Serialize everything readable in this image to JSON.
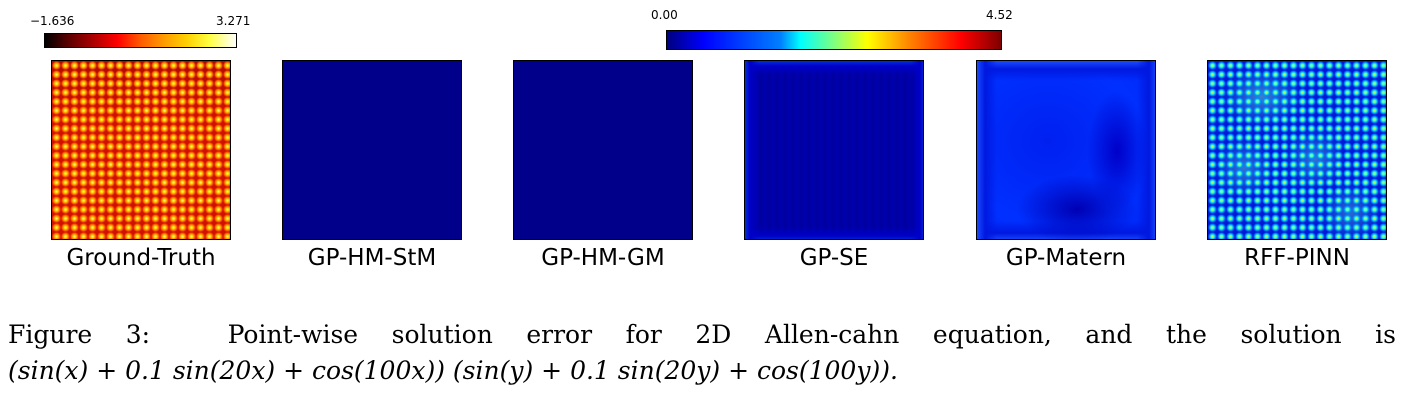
{
  "colorbars": {
    "ground_truth": {
      "min_label": "−1.636",
      "max_label": "3.271",
      "colormap": "hot"
    },
    "error": {
      "min_label": "0.00",
      "max_label": "4.52",
      "colormap": "jet"
    }
  },
  "panels": [
    {
      "label": "Ground-Truth",
      "dominant_color": "#d01000"
    },
    {
      "label": "GP-HM-StM",
      "dominant_color": "#00008a"
    },
    {
      "label": "GP-HM-GM",
      "dominant_color": "#00008a"
    },
    {
      "label": "GP-SE",
      "dominant_color": "#0000a0"
    },
    {
      "label": "GP-Matern",
      "dominant_color": "#0028f8"
    },
    {
      "label": "RFF-PINN",
      "dominant_color": "#0018d8"
    }
  ],
  "caption": {
    "figure_label": "Figure 3:",
    "text_line1": "Point-wise solution error for 2D Allen-cahn equation, and the solution is",
    "text_line2": "(sin(x) + 0.1 sin(20x) + cos(100x)) (sin(y) + 0.1 sin(20y) + cos(100y))."
  }
}
